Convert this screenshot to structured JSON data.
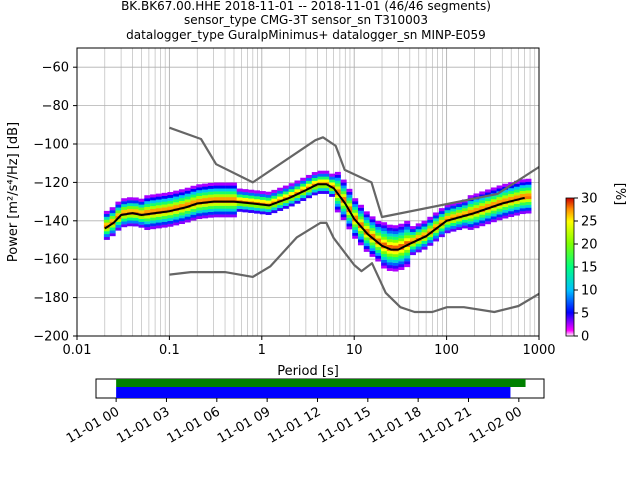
{
  "header": {
    "lines": [
      "BK.BK67.00.HHE   2018-11-01 -- 2018-11-01  (46/46 segments)",
      "sensor_type CMG-3T sensor_sn T310003",
      "datalogger_type GuralpMinimus+ datalogger_sn MINP-E059"
    ]
  },
  "chart_data": [
    {
      "type": "heatmap",
      "title": "",
      "xlabel": "Period [s]",
      "ylabel": "Power [m²/s⁴/Hz] [dB]",
      "xscale": "log",
      "xlim": [
        0.01,
        1000
      ],
      "ylim": [
        -200,
        -50
      ],
      "grid": true,
      "x_ticks": [
        0.01,
        0.1,
        1,
        10,
        100,
        1000
      ],
      "x_tick_labels": [
        "0.01",
        "0.1",
        "1",
        "10",
        "100",
        "1000"
      ],
      "y_ticks": [
        -60,
        -80,
        -100,
        -120,
        -140,
        -160,
        -180,
        -200
      ],
      "y_tick_labels": [
        "−60",
        "−80",
        "−100",
        "−120",
        "−140",
        "−160",
        "−180",
        "−200"
      ],
      "series": [
        {
          "name": "",
          "role": "mean",
          "color": "#000000",
          "x": [
            0.02,
            0.025,
            0.03,
            0.04,
            0.05,
            0.07,
            0.1,
            0.15,
            0.2,
            0.3,
            0.5,
            0.8,
            1.2,
            2,
            3,
            4,
            5,
            6,
            8,
            10,
            14,
            20,
            25,
            30,
            40,
            60,
            100,
            200,
            400,
            700
          ],
          "y": [
            -144,
            -141,
            -137,
            -136,
            -137,
            -136,
            -135,
            -133,
            -131,
            -130,
            -130,
            -131,
            -132,
            -128,
            -124,
            -121,
            -121,
            -123,
            -131,
            -139,
            -147,
            -153,
            -155,
            -155,
            -152,
            -148,
            -140,
            -136,
            -131,
            -128
          ]
        },
        {
          "name": "",
          "role": "high noise model",
          "color": "#666666",
          "x": [
            0.1,
            0.22,
            0.32,
            0.8,
            3.8,
            4.6,
            6.3,
            7.9,
            15.4,
            20,
            354.8,
            1000
          ],
          "y": [
            -91.5,
            -97.4,
            -110.5,
            -120,
            -98,
            -96.5,
            -101,
            -113.5,
            -120,
            -138,
            -126,
            -112
          ]
        },
        {
          "name": "",
          "role": "low noise model",
          "color": "#666666",
          "x": [
            0.1,
            0.17,
            0.4,
            0.8,
            1.24,
            2.4,
            4.3,
            5,
            6,
            10,
            12,
            15.6,
            21.9,
            31.6,
            45,
            70,
            101,
            154,
            328,
            600,
            1000
          ],
          "y": [
            -168,
            -166.7,
            -166.7,
            -169.2,
            -163.7,
            -148.6,
            -141.1,
            -141.1,
            -149,
            -163,
            -166.2,
            -162.1,
            -177.5,
            -185,
            -187.5,
            -187.5,
            -185,
            -185,
            -187.5,
            -184.4,
            -178
          ]
        }
      ],
      "colorbar": {
        "label": "[%]",
        "min": 0,
        "max": 30,
        "ticks": [
          0,
          5,
          10,
          15,
          20,
          25,
          30
        ],
        "tick_labels": [
          "0",
          "5",
          "10",
          "15",
          "20",
          "25",
          "30"
        ]
      }
    },
    {
      "type": "timeline",
      "title": "",
      "x_tick_labels": [
        "11-01 00",
        "11-01 03",
        "11-01 06",
        "11-01 09",
        "11-01 12",
        "11-01 15",
        "11-01 18",
        "11-01 21",
        "11-02 00"
      ],
      "x_ticks_hours": [
        0,
        3,
        6,
        9,
        12,
        15,
        18,
        21,
        24
      ],
      "xlim_hours": [
        -1.2,
        25.5
      ],
      "bars": [
        {
          "color": "#008000",
          "start_hours": 0,
          "end_hours": 24.4
        },
        {
          "color": "#0000ff",
          "start_hours": 0,
          "end_hours": 23.5
        }
      ]
    }
  ]
}
